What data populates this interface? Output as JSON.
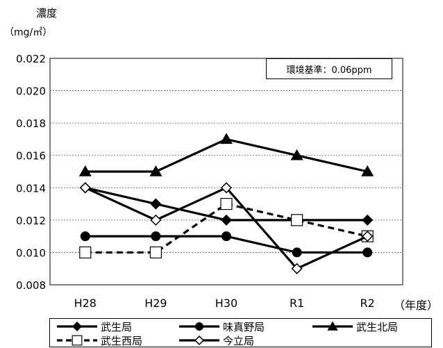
{
  "chart_data": {
    "type": "line",
    "ylabel": "濃度",
    "yunit": "（mg/㎥）",
    "xlabel": "（年度）",
    "categories": [
      "H28",
      "H29",
      "H30",
      "R1",
      "R2"
    ],
    "ylim": [
      0.008,
      0.022
    ],
    "yticks": [
      "0.022",
      "0.020",
      "0.018",
      "0.016",
      "0.014",
      "0.012",
      "0.010",
      "0.008"
    ],
    "grid": true,
    "annotation": "環境基準：0.06ppm",
    "legend_position": "bottom",
    "series": [
      {
        "name": "武生局",
        "values": [
          0.014,
          0.013,
          0.012,
          0.012,
          0.012
        ],
        "marker": "diamond-filled",
        "dash": false
      },
      {
        "name": "味真野局",
        "values": [
          0.011,
          0.011,
          0.011,
          0.01,
          0.01
        ],
        "marker": "circle-filled",
        "dash": false
      },
      {
        "name": "武生北局",
        "values": [
          0.015,
          0.015,
          0.017,
          0.016,
          0.015
        ],
        "marker": "triangle-filled",
        "dash": false
      },
      {
        "name": "武生西局",
        "values": [
          0.01,
          0.01,
          0.013,
          0.012,
          0.011
        ],
        "marker": "square-open",
        "dash": true
      },
      {
        "name": "今立局",
        "values": [
          0.014,
          0.012,
          0.014,
          0.009,
          0.011
        ],
        "marker": "diamond-open",
        "dash": false
      }
    ]
  }
}
